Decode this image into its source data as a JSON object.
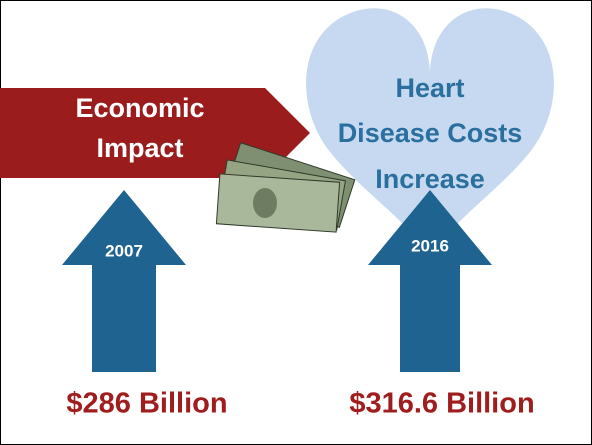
{
  "banner": {
    "lines": [
      "Economic",
      "Impact"
    ]
  },
  "heart": {
    "lines": [
      "Heart",
      "Disease Costs",
      "Increase"
    ]
  },
  "arrows": [
    {
      "year": "2007",
      "amount": "$286 Billion"
    },
    {
      "year": "2016",
      "amount": "$316.6 Billion"
    }
  ]
}
